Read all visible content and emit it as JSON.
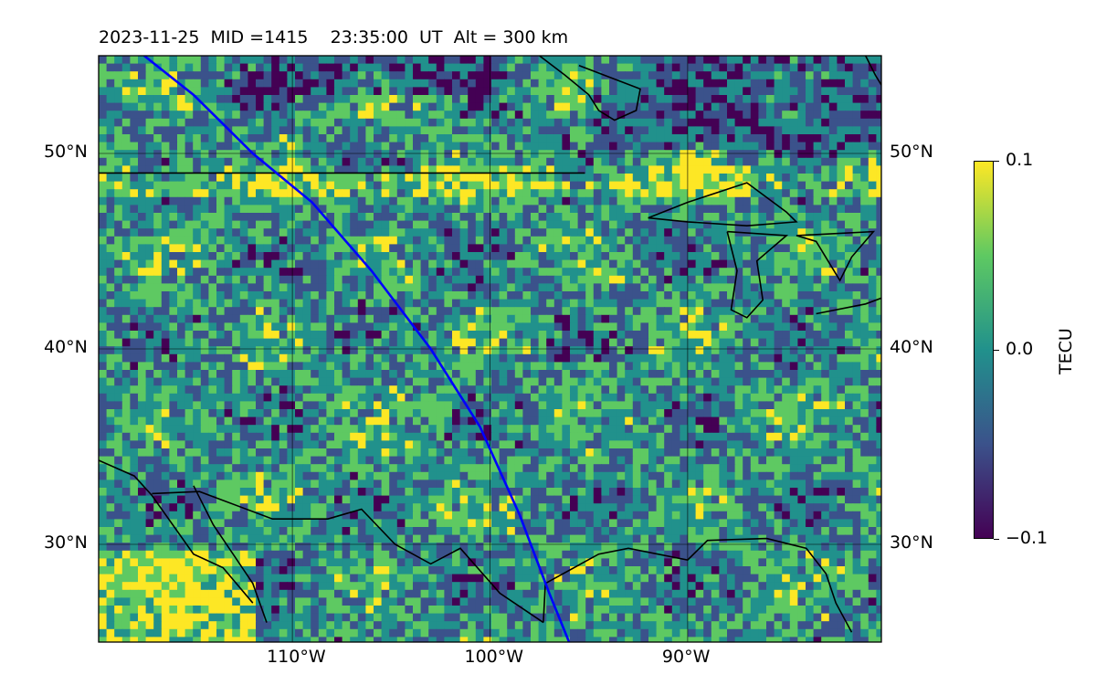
{
  "title": "2023-11-25  MID =1415    23:35:00  UT  Alt = 300 km",
  "map": {
    "projection": "plate-carree",
    "lon_range": [
      -119.8,
      -80.2
    ],
    "lat_range": [
      25,
      55
    ],
    "grid_lons": [
      -110,
      -100,
      -90
    ],
    "grid_lats": [
      30,
      40,
      50
    ],
    "lat_labels": [
      {
        "value": 50,
        "text": "50°N"
      },
      {
        "value": 40,
        "text": "40°N"
      },
      {
        "value": 30,
        "text": "30°N"
      }
    ],
    "lon_labels": [
      {
        "value": -110,
        "text": "110°W"
      },
      {
        "value": -100,
        "text": "100°W"
      },
      {
        "value": -90,
        "text": "90°W"
      }
    ],
    "track_color": "#0000ff",
    "track": [
      [
        -117.5,
        55
      ],
      [
        -115,
        53
      ],
      [
        -112,
        50
      ],
      [
        -109,
        47.5
      ],
      [
        -106,
        44
      ],
      [
        -103,
        40
      ],
      [
        -100.5,
        36
      ],
      [
        -98.5,
        31.5
      ],
      [
        -97,
        27.5
      ],
      [
        -96,
        25
      ]
    ],
    "border_49": [
      [
        -119.8,
        49
      ],
      [
        -95.2,
        49
      ]
    ],
    "coast_gulf": [
      [
        -97.3,
        26
      ],
      [
        -97.2,
        28
      ],
      [
        -94.5,
        29.5
      ],
      [
        -93,
        29.8
      ],
      [
        -90,
        29.2
      ],
      [
        -89,
        30.2
      ],
      [
        -86,
        30.3
      ],
      [
        -84,
        29.8
      ],
      [
        -83,
        28.5
      ],
      [
        -82.5,
        27
      ],
      [
        -81.7,
        25.5
      ]
    ],
    "coast_mexico": [
      [
        -119.8,
        34.3
      ],
      [
        -118,
        33.5
      ],
      [
        -117.1,
        32.5
      ],
      [
        -115,
        29.5
      ],
      [
        -113.5,
        28.8
      ],
      [
        -112,
        27
      ]
    ],
    "baja": [
      [
        -115,
        33
      ],
      [
        -114,
        31
      ],
      [
        -113,
        29.5
      ],
      [
        -112,
        28
      ],
      [
        -111.3,
        26
      ]
    ],
    "mex_border": [
      [
        -117.1,
        32.6
      ],
      [
        -114.7,
        32.7
      ],
      [
        -111,
        31.3
      ],
      [
        -108.2,
        31.3
      ],
      [
        -106.5,
        31.8
      ],
      [
        -104.8,
        30
      ],
      [
        -103,
        29
      ],
      [
        -101.5,
        29.8
      ],
      [
        -99.5,
        27.5
      ],
      [
        -97.3,
        26
      ]
    ],
    "lakes": [
      [
        [
          -92,
          46.7
        ],
        [
          -90,
          47.5
        ],
        [
          -87,
          48.5
        ],
        [
          -85,
          47
        ],
        [
          -84.5,
          46.5
        ],
        [
          -87,
          46.3
        ],
        [
          -90,
          46.5
        ],
        [
          -92,
          46.7
        ]
      ],
      [
        [
          -88,
          46
        ],
        [
          -87.5,
          44
        ],
        [
          -87.8,
          42
        ],
        [
          -87,
          41.6
        ],
        [
          -86.2,
          42.5
        ],
        [
          -86.5,
          44.5
        ],
        [
          -85,
          45.8
        ],
        [
          -88,
          46
        ]
      ],
      [
        [
          -84.5,
          45.8
        ],
        [
          -83.5,
          45.5
        ],
        [
          -82.3,
          43.5
        ],
        [
          -81.7,
          44.7
        ],
        [
          -80.6,
          46
        ],
        [
          -84.5,
          45.8
        ]
      ],
      [
        [
          -83.5,
          41.8
        ],
        [
          -81,
          42.3
        ],
        [
          -80.2,
          42.6
        ]
      ]
    ],
    "hudson_coast": [
      [
        -97.5,
        55
      ],
      [
        -96.2,
        54
      ],
      [
        -95,
        53
      ],
      [
        -94.5,
        52.2
      ],
      [
        -93.7,
        51.7
      ],
      [
        -92.6,
        52.2
      ],
      [
        -92.4,
        53.3
      ],
      [
        -95.5,
        54.5
      ]
    ],
    "ne_coast": [
      [
        -81,
        55
      ],
      [
        -80.5,
        54
      ],
      [
        -80.2,
        53.5
      ]
    ]
  },
  "colorbar": {
    "label": "TECU",
    "ticks": [
      {
        "value": 0.1,
        "text": "0.1"
      },
      {
        "value": 0.0,
        "text": "0.0"
      },
      {
        "value": -0.1,
        "text": "−0.1"
      }
    ],
    "colormap": "viridis",
    "vmin": -0.1,
    "vmax": 0.1,
    "stops": [
      "#440154",
      "#3b528b",
      "#21918c",
      "#5ec962",
      "#fde725"
    ]
  }
}
